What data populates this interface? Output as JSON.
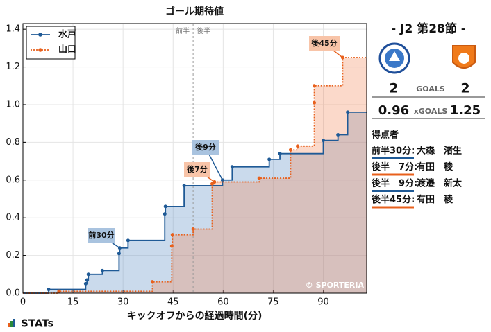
{
  "chart_data": {
    "type": "line",
    "drawstyle": "steps-post",
    "title": "ゴール期待値",
    "xlabel": "キックオフからの経過時間(分)",
    "xlim": [
      0,
      103
    ],
    "ylim": [
      0,
      1.43
    ],
    "xticks": [
      0,
      15,
      30,
      45,
      60,
      75,
      90
    ],
    "yticks": [
      {
        "value": 0,
        "label": "0.0"
      },
      0.2,
      0.4,
      0.6,
      0.8,
      {
        "value": 1,
        "label": "1.0"
      },
      1.2,
      1.4
    ],
    "grid": true,
    "legend": "upper left",
    "divider": {
      "x": 51,
      "left": "前半",
      "right": "後半"
    },
    "credit": "© SPORTERIA",
    "series": [
      {
        "name": "水戸",
        "color": "#1f5a96",
        "area": "#5b8cc4",
        "linestyle": "solid",
        "x": [
          7.7,
          18.8,
          19.2,
          19.6,
          23.8,
          28.8,
          29.0,
          31.5,
          42.5,
          42.7,
          48.3,
          59.8,
          62.7,
          73.8,
          77,
          90,
          94.4,
          97.3
        ],
        "values": [
          0.02,
          0.05,
          0.07,
          0.1,
          0.12,
          0.21,
          0.24,
          0.28,
          0.42,
          0.46,
          0.57,
          0.6,
          0.67,
          0.71,
          0.74,
          0.81,
          0.84,
          0.96
        ]
      },
      {
        "name": "山口",
        "color": "#e8601c",
        "area": "#f38a5a",
        "linestyle": "dotted",
        "x": [
          10.8,
          38.8,
          44.6,
          44.8,
          51,
          56.7,
          57.4,
          70.8,
          80.2,
          82.3,
          87.3,
          87.3,
          95.8
        ],
        "values": [
          0.01,
          0.06,
          0.25,
          0.31,
          0.34,
          0.58,
          0.59,
          0.61,
          0.76,
          0.78,
          1.01,
          1.1,
          1.25
        ]
      }
    ],
    "annotations": [
      "前30分",
      "後9分",
      "後7分",
      "後45分"
    ]
  },
  "panel": {
    "title": "- J2 第28節 -",
    "goals_label": "GOALS",
    "xgoals_label": "xGOALS",
    "home_goals": 2,
    "away_goals": 2,
    "home_xg": 0.96,
    "away_xg": 1.25,
    "scorers_title": "得点者",
    "scorers": [
      {
        "time": "前半30分:",
        "name": "大森　渚生",
        "color": "#1f5a96"
      },
      {
        "time": "後半　7分:",
        "name": "有田　稜",
        "color": "#e8601c"
      },
      {
        "time": "後半　9分:",
        "name": "渡邉　新太",
        "color": "#1f5a96"
      },
      {
        "time": "後半45分:",
        "name": "有田　稜",
        "color": "#e8601c"
      }
    ]
  },
  "footer": {
    "brand": "STATs"
  }
}
